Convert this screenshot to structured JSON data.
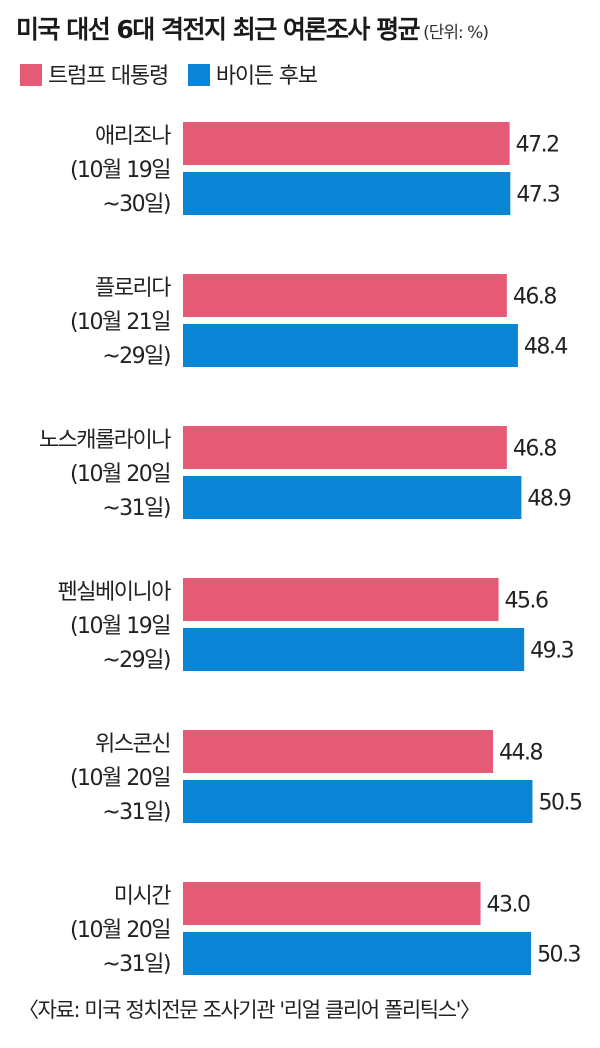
{
  "title": "미국 대선 6대 격전지 최근 여론조사 평균",
  "unit": "(단위: %)",
  "source": "〈자료: 미국 정치전문 조사기관 '리얼 클리어 폴리틱스'〉",
  "colors": {
    "trump": "#e55a75",
    "biden": "#0a85d6"
  },
  "chart_data": {
    "type": "bar",
    "orientation": "horizontal",
    "series": [
      {
        "name": "트럼프 대통령",
        "values": [
          47.2,
          46.8,
          46.8,
          45.6,
          44.8,
          43.0
        ]
      },
      {
        "name": "바이든 후보",
        "values": [
          47.3,
          48.4,
          48.9,
          49.3,
          50.5,
          50.3
        ]
      }
    ],
    "categories": [
      {
        "name": "애리조나",
        "period_line1": "(10월 19일",
        "period_line2": "~30일)"
      },
      {
        "name": "플로리다",
        "period_line1": "(10월 21일",
        "period_line2": "~29일)"
      },
      {
        "name": "노스캐롤라이나",
        "period_line1": "(10월 20일",
        "period_line2": "~31일)"
      },
      {
        "name": "펜실베이니아",
        "period_line1": "(10월 19일",
        "period_line2": "~29일)"
      },
      {
        "name": "위스콘신",
        "period_line1": "(10월 20일",
        "period_line2": "~31일)"
      },
      {
        "name": "미시간",
        "period_line1": "(10월 20일",
        "period_line2": "~31일)"
      }
    ],
    "value_labels": [
      [
        "47.2",
        "47.3"
      ],
      [
        "46.8",
        "48.4"
      ],
      [
        "46.8",
        "48.9"
      ],
      [
        "45.6",
        "49.3"
      ],
      [
        "44.8",
        "50.5"
      ],
      [
        "43.0",
        "50.3"
      ]
    ],
    "legend_position": "top-left",
    "grid": false
  }
}
